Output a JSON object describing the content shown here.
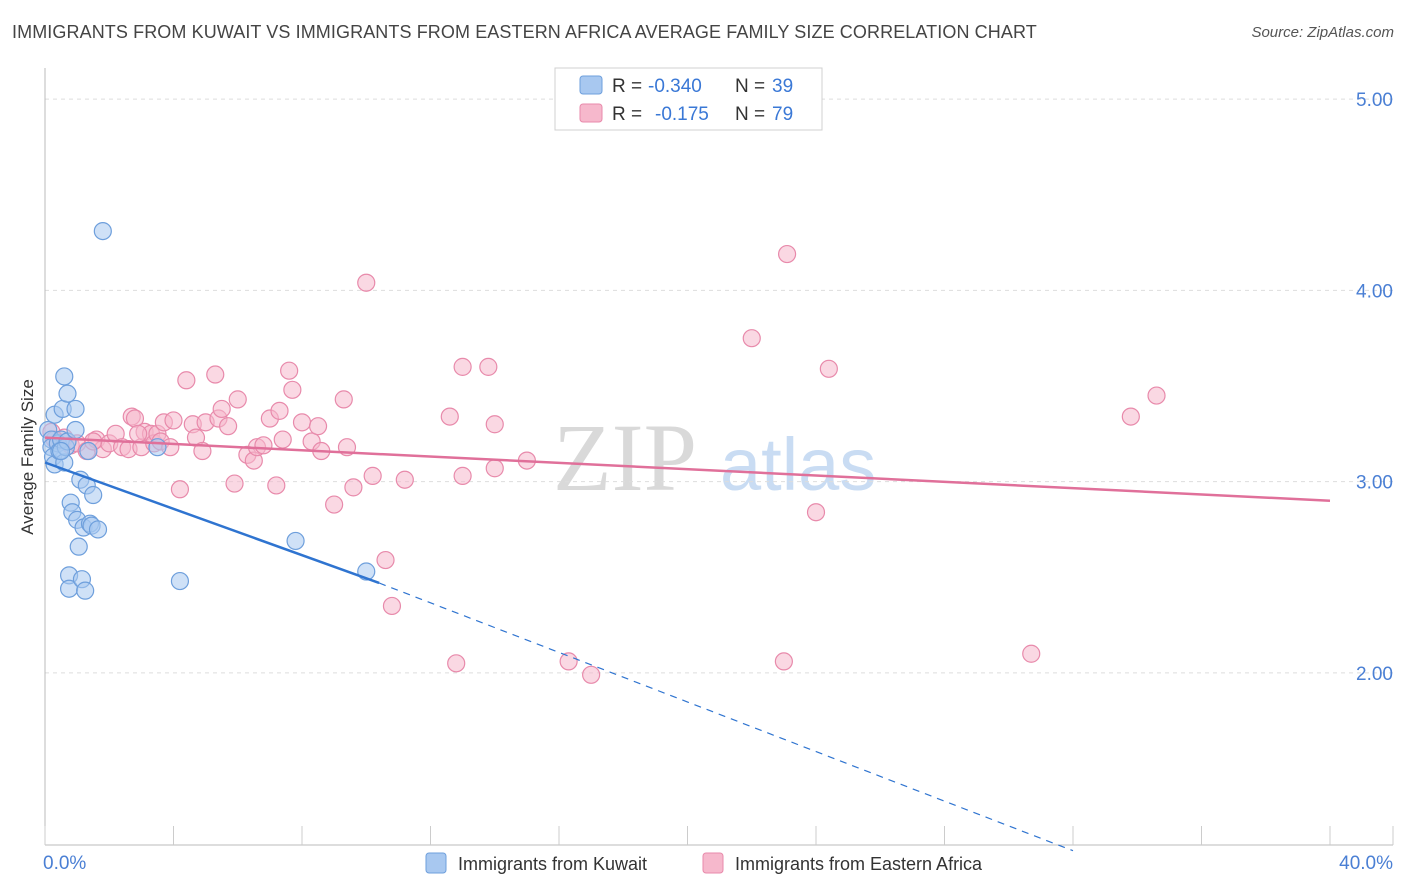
{
  "header": {
    "title": "IMMIGRANTS FROM KUWAIT VS IMMIGRANTS FROM EASTERN AFRICA AVERAGE FAMILY SIZE CORRELATION CHART",
    "source": "Source: ZipAtlas.com"
  },
  "watermark": {
    "zip": "ZIP",
    "atlas": "atlas"
  },
  "colors": {
    "blue_fill": "#a8c8f0",
    "blue_stroke": "#6e9fdc",
    "blue_line": "#2f74d0",
    "pink_fill": "#f6b8cc",
    "pink_stroke": "#e88aab",
    "pink_line": "#e0709a",
    "tick": "#4a7fd4"
  },
  "legend": {
    "rows": [
      {
        "r_label": "R =",
        "r_value": "-0.340",
        "n_label": "N =",
        "n_value": "39"
      },
      {
        "r_label": "R =",
        "r_value": "-0.175",
        "n_label": "N =",
        "n_value": "79"
      }
    ]
  },
  "chart_data": {
    "type": "scatter",
    "title": "IMMIGRANTS FROM KUWAIT VS IMMIGRANTS FROM EASTERN AFRICA AVERAGE FAMILY SIZE CORRELATION CHART",
    "xlabel": "",
    "ylabel": "Average Family Size",
    "xlim": [
      0,
      40
    ],
    "ylim": [
      1.1,
      5.1
    ],
    "x_tick_labels": [
      "0.0%",
      "40.0%"
    ],
    "y_ticks": [
      2.0,
      3.0,
      4.0,
      5.0
    ],
    "y_tick_labels": [
      "2.00",
      "3.00",
      "4.00",
      "5.00"
    ],
    "grid": true,
    "series": [
      {
        "name": "Immigrants from Kuwait",
        "color": "blue",
        "r": -0.34,
        "n": 39,
        "trend": {
          "x0": 0.0,
          "y0": 3.1,
          "x1": 10.4,
          "y1": 2.47,
          "dash_to_x": 32.0,
          "dash_to_y": 1.07
        },
        "points": [
          [
            0.1,
            3.27
          ],
          [
            0.2,
            3.22
          ],
          [
            0.2,
            3.18
          ],
          [
            0.25,
            3.13
          ],
          [
            0.3,
            3.09
          ],
          [
            0.3,
            3.35
          ],
          [
            0.4,
            3.2
          ],
          [
            0.45,
            3.16
          ],
          [
            0.5,
            3.22
          ],
          [
            0.55,
            3.38
          ],
          [
            0.6,
            3.55
          ],
          [
            0.6,
            3.1
          ],
          [
            0.65,
            3.18
          ],
          [
            0.7,
            3.46
          ],
          [
            0.7,
            3.21
          ],
          [
            0.75,
            2.51
          ],
          [
            0.75,
            2.44
          ],
          [
            0.8,
            2.89
          ],
          [
            0.85,
            2.84
          ],
          [
            0.95,
            3.27
          ],
          [
            0.95,
            3.38
          ],
          [
            1.0,
            2.8
          ],
          [
            1.05,
            2.66
          ],
          [
            1.1,
            3.01
          ],
          [
            1.15,
            2.49
          ],
          [
            1.2,
            2.76
          ],
          [
            1.25,
            2.43
          ],
          [
            1.3,
            2.98
          ],
          [
            1.35,
            3.16
          ],
          [
            1.4,
            2.78
          ],
          [
            1.45,
            2.77
          ],
          [
            1.5,
            2.93
          ],
          [
            1.65,
            2.75
          ],
          [
            1.8,
            4.31
          ],
          [
            3.5,
            3.18
          ],
          [
            4.2,
            2.48
          ],
          [
            7.8,
            2.69
          ],
          [
            10.0,
            2.53
          ],
          [
            0.5,
            3.16
          ]
        ]
      },
      {
        "name": "Immigrants from Eastern Africa",
        "color": "pink",
        "r": -0.175,
        "n": 79,
        "trend": {
          "x0": 0.0,
          "y0": 3.23,
          "x1": 40.0,
          "y1": 2.9
        },
        "points": [
          [
            0.2,
            3.26
          ],
          [
            0.4,
            3.2
          ],
          [
            0.6,
            3.23
          ],
          [
            0.8,
            3.19
          ],
          [
            1.0,
            3.2
          ],
          [
            1.3,
            3.16
          ],
          [
            1.6,
            3.22
          ],
          [
            1.8,
            3.17
          ],
          [
            2.0,
            3.2
          ],
          [
            2.2,
            3.25
          ],
          [
            2.4,
            3.18
          ],
          [
            2.6,
            3.17
          ],
          [
            2.7,
            3.34
          ],
          [
            2.8,
            3.33
          ],
          [
            3.0,
            3.18
          ],
          [
            3.1,
            3.26
          ],
          [
            3.3,
            3.25
          ],
          [
            3.4,
            3.2
          ],
          [
            3.5,
            3.25
          ],
          [
            3.6,
            3.21
          ],
          [
            3.7,
            3.31
          ],
          [
            3.9,
            3.18
          ],
          [
            4.0,
            3.32
          ],
          [
            4.2,
            2.96
          ],
          [
            4.4,
            3.53
          ],
          [
            4.6,
            3.3
          ],
          [
            4.7,
            3.23
          ],
          [
            4.9,
            3.16
          ],
          [
            5.0,
            3.31
          ],
          [
            5.3,
            3.56
          ],
          [
            5.4,
            3.33
          ],
          [
            5.5,
            3.38
          ],
          [
            5.7,
            3.29
          ],
          [
            5.9,
            2.99
          ],
          [
            6.0,
            3.43
          ],
          [
            6.3,
            3.14
          ],
          [
            6.5,
            3.11
          ],
          [
            6.6,
            3.18
          ],
          [
            6.8,
            3.19
          ],
          [
            7.0,
            3.33
          ],
          [
            7.2,
            2.98
          ],
          [
            7.3,
            3.37
          ],
          [
            7.4,
            3.22
          ],
          [
            7.6,
            3.58
          ],
          [
            7.7,
            3.48
          ],
          [
            8.0,
            3.31
          ],
          [
            8.3,
            3.21
          ],
          [
            8.5,
            3.29
          ],
          [
            8.6,
            3.16
          ],
          [
            9.0,
            2.88
          ],
          [
            9.3,
            3.43
          ],
          [
            9.4,
            3.18
          ],
          [
            9.6,
            2.97
          ],
          [
            10.0,
            4.04
          ],
          [
            10.2,
            3.03
          ],
          [
            10.6,
            2.59
          ],
          [
            10.8,
            2.35
          ],
          [
            11.2,
            3.01
          ],
          [
            12.6,
            3.34
          ],
          [
            12.8,
            2.05
          ],
          [
            13.0,
            3.03
          ],
          [
            13.0,
            3.6
          ],
          [
            13.8,
            3.6
          ],
          [
            14.0,
            3.3
          ],
          [
            14.0,
            3.07
          ],
          [
            15.0,
            3.11
          ],
          [
            16.3,
            2.06
          ],
          [
            17.0,
            1.99
          ],
          [
            22.0,
            3.75
          ],
          [
            23.0,
            2.06
          ],
          [
            23.1,
            4.19
          ],
          [
            24.0,
            2.84
          ],
          [
            24.4,
            3.59
          ],
          [
            30.7,
            2.1
          ],
          [
            33.8,
            3.34
          ],
          [
            34.6,
            3.45
          ],
          [
            0.3,
            3.22
          ],
          [
            1.5,
            3.21
          ],
          [
            2.9,
            3.25
          ]
        ]
      }
    ]
  },
  "bottom_legend": {
    "items": [
      {
        "label": "Immigrants from Kuwait"
      },
      {
        "label": "Immigrants from Eastern Africa"
      }
    ]
  }
}
